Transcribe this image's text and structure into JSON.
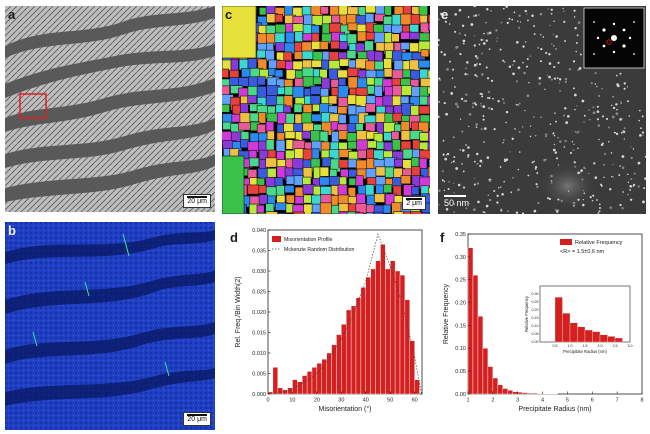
{
  "panels": {
    "a": {
      "label": "a",
      "scale": "20 μm"
    },
    "b": {
      "label": "b",
      "scale": "20 μm"
    },
    "c": {
      "label": "c",
      "scale": "2 μm"
    },
    "e": {
      "label": "e",
      "scale": "50 nm"
    }
  },
  "chart_data": [
    {
      "panel": "d",
      "type": "bar",
      "xlabel": "Misorientation (°)",
      "ylabel": "Rel. Freq./Bin Width(2)",
      "xlim": [
        0,
        63
      ],
      "ylim": [
        0,
        0.04
      ],
      "xticks": [
        "0",
        "10",
        "20",
        "30",
        "40",
        "50",
        "60"
      ],
      "yticks": [
        "0.000",
        "0.005",
        "0.010",
        "0.015",
        "0.020",
        "0.025",
        "0.030",
        "0.035",
        "0.040"
      ],
      "legend": [
        "Misorientation Profile",
        "Mckenzie Random Distribution"
      ],
      "legend_position": "top-left",
      "bar_color": "#d42020",
      "bin_width": 2,
      "series": [
        {
          "name": "Misorientation Profile",
          "x": [
            1,
            3,
            5,
            7,
            9,
            11,
            13,
            15,
            17,
            19,
            21,
            23,
            25,
            27,
            29,
            31,
            33,
            35,
            37,
            39,
            41,
            43,
            45,
            47,
            49,
            51,
            53,
            55,
            57,
            59,
            61
          ],
          "values": [
            0.0005,
            0.0065,
            0.0015,
            0.001,
            0.0015,
            0.0035,
            0.003,
            0.0045,
            0.0055,
            0.0065,
            0.0075,
            0.0085,
            0.01,
            0.012,
            0.0145,
            0.017,
            0.0205,
            0.0215,
            0.0235,
            0.026,
            0.0285,
            0.0305,
            0.0325,
            0.0365,
            0.0305,
            0.0325,
            0.03,
            0.029,
            0.023,
            0.013,
            0.0035
          ]
        },
        {
          "name": "Mckenzie Random Distribution",
          "style": "dotted-line",
          "x": [
            0,
            5,
            10,
            15,
            20,
            25,
            30,
            35,
            40,
            45,
            50,
            55,
            60,
            62.8
          ],
          "values": [
            0,
            0.0003,
            0.0012,
            0.0028,
            0.005,
            0.0085,
            0.0135,
            0.0195,
            0.0275,
            0.039,
            0.031,
            0.022,
            0.009,
            0
          ]
        }
      ]
    },
    {
      "panel": "f",
      "type": "bar",
      "xlabel": "Precipitate Radius (nm)",
      "ylabel": "Relative Frequency",
      "xlim": [
        1,
        8
      ],
      "ylim": [
        0,
        0.35
      ],
      "xticks": [
        "1",
        "2",
        "3",
        "4",
        "5",
        "6",
        "7",
        "8"
      ],
      "yticks": [
        "0.00",
        "0.05",
        "0.10",
        "0.15",
        "0.20",
        "0.25",
        "0.30",
        "0.35"
      ],
      "legend": [
        "Relative Frequency",
        "<R> = 1.5±0.6 nm"
      ],
      "legend_position": "top-right",
      "bar_color": "#d42020",
      "bin_width": 0.2,
      "series": [
        {
          "name": "Relative Frequency",
          "x": [
            1.1,
            1.3,
            1.5,
            1.7,
            1.9,
            2.1,
            2.3,
            2.5,
            2.7,
            2.9,
            3.1,
            3.3,
            3.5,
            3.7,
            3.9,
            4.1,
            4.3,
            4.5
          ],
          "values": [
            0.32,
            0.26,
            0.17,
            0.1,
            0.06,
            0.035,
            0.02,
            0.012,
            0.008,
            0.005,
            0.004,
            0.003,
            0.002,
            0.002,
            0.001,
            0.001,
            0.0008,
            0.0005
          ]
        }
      ]
    },
    {
      "panel": "f-inset",
      "type": "bar",
      "xlabel": "Precipitate Radius (nm)",
      "ylabel": "Relative Frequency",
      "xlim": [
        0,
        3
      ],
      "ylim": [
        0,
        0.35
      ],
      "xticks": [
        "0.5",
        "1.0",
        "1.5",
        "2.0",
        "2.5",
        "3.0"
      ],
      "yticks": [
        "0.00",
        "0.05",
        "0.10",
        "0.15",
        "0.20",
        "0.25",
        "0.30"
      ],
      "bar_color": "#d42020",
      "bin_width": 0.25,
      "series": [
        {
          "name": "Relative Frequency",
          "x": [
            0.625,
            0.875,
            1.125,
            1.375,
            1.625,
            1.875,
            2.125,
            2.375,
            2.625
          ],
          "values": [
            0.28,
            0.18,
            0.12,
            0.095,
            0.075,
            0.065,
            0.045,
            0.035,
            0.025
          ]
        }
      ]
    }
  ]
}
